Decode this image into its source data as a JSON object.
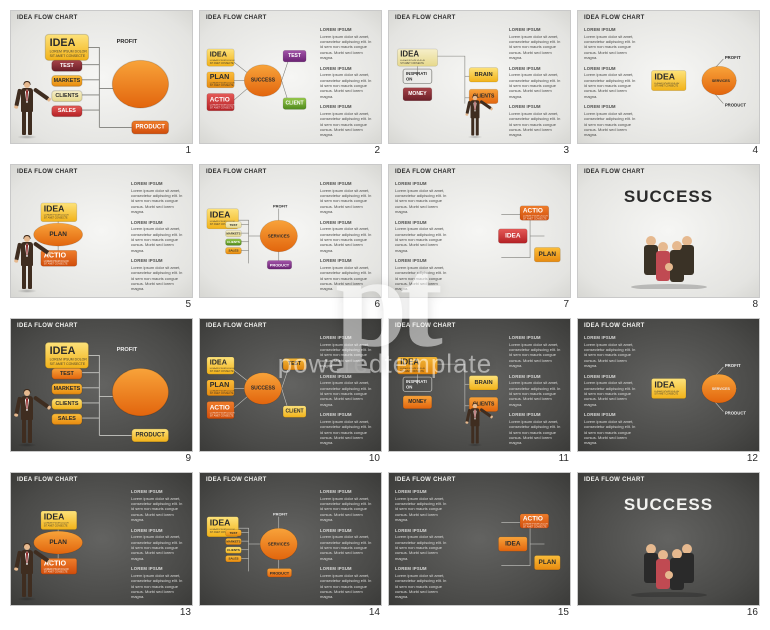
{
  "watermark": {
    "logo": "pt",
    "text": "poweredtemplate"
  },
  "slide_title": "IDEA FLOW CHART",
  "lorem_label": "LOREM IPSUM",
  "lorem_body": "Lorem ipsum dolor sit amet, consectetur adipiscing elit. In id sem non mauris congue cursus. Morbi sed lorem magna.",
  "colors": {
    "line_light": "#7d7d78",
    "line_dark": "#c8c8c4",
    "yellow_a": "#fde27a",
    "yellow_b": "#f2b219",
    "amber_a": "#fbbd3a",
    "amber_b": "#e78a0f",
    "orange_a": "#f8a33a",
    "orange_b": "#e2650d",
    "dorange_a": "#ef7e2c",
    "dorange_b": "#d14c0a",
    "red_a": "#e55a57",
    "red_b": "#b42024",
    "maroon_a": "#a64248",
    "maroon_b": "#6c1f28",
    "purple_a": "#a254a8",
    "purple_b": "#6b2274",
    "green_a": "#97c94c",
    "green_b": "#4f8a1d",
    "cream_a": "#f6efca",
    "cream_b": "#e7d98c",
    "node_txt_dark": "#2b2b2b",
    "node_txt_light": "#ffffff",
    "sub_txt": "#5a4a0c"
  },
  "slides": [
    {
      "id": 1,
      "theme": "light",
      "text_side": "none",
      "layout": "A",
      "has_man": "left",
      "nodes": {
        "idea": "IDEA",
        "profit": "PROFIT",
        "test": "TEST",
        "markets": "MARKETS",
        "clients": "CLIENTS",
        "sales": "SALES",
        "ellipse": "",
        "product": "PRODUCT"
      }
    },
    {
      "id": 2,
      "theme": "light",
      "text_side": "right",
      "layout": "B",
      "nodes": {
        "idea": "IDEA",
        "test": "TEST",
        "plan": "PLAN",
        "success": "SUCCESS",
        "actio": "ACTIO",
        "client": "CLIENT"
      }
    },
    {
      "id": 3,
      "theme": "light",
      "text_side": "right",
      "layout": "C",
      "has_man": "mid",
      "nodes": {
        "idea": "IDEA",
        "inspiration": "INSPIRATI\nON",
        "money": "MONEY",
        "brain": "BRAIN",
        "clients": "CLIENTS"
      }
    },
    {
      "id": 4,
      "theme": "light",
      "text_side": "left",
      "layout": "D",
      "nodes": {
        "profit": "PROFIT",
        "idea": "IDEA",
        "services": "SERVICES",
        "product": "PRODUCT"
      }
    },
    {
      "id": 5,
      "theme": "light",
      "text_side": "right",
      "layout": "E",
      "has_man": "left",
      "nodes": {
        "idea": "IDEA",
        "plan": "PLAN",
        "actio": "ACTIO"
      }
    },
    {
      "id": 6,
      "theme": "light",
      "text_side": "right",
      "layout": "F",
      "nodes": {
        "idea": "IDEA",
        "profit": "PROFIT",
        "test": "TEST",
        "markets": "MARKETS",
        "clients": "CLIENTS",
        "sales": "SALES",
        "services": "SERVICES",
        "product": "PRODUCT"
      }
    },
    {
      "id": 7,
      "theme": "light",
      "text_side": "left",
      "layout": "G",
      "nodes": {
        "actio": "ACTIO",
        "idea": "IDEA",
        "plan": "PLAN"
      }
    },
    {
      "id": 8,
      "theme": "light",
      "text_side": "none",
      "layout": "H",
      "nodes": {
        "success": "SUCCESS"
      }
    },
    {
      "id": 9,
      "theme": "dark",
      "text_side": "none",
      "layout": "A",
      "has_man": "left",
      "nodes": {
        "idea": "IDEA",
        "profit": "PROFIT",
        "test": "TEST",
        "markets": "MARKETS",
        "clients": "CLIENTS",
        "sales": "SALES",
        "ellipse": "",
        "product": "PRODUCT"
      }
    },
    {
      "id": 10,
      "theme": "dark",
      "text_side": "right",
      "layout": "B",
      "nodes": {
        "idea": "IDEA",
        "test": "TEST",
        "plan": "PLAN",
        "success": "SUCCESS",
        "actio": "ACTIO",
        "client": "CLIENT"
      }
    },
    {
      "id": 11,
      "theme": "dark",
      "text_side": "right",
      "layout": "C",
      "has_man": "mid",
      "nodes": {
        "idea": "IDEA",
        "inspiration": "INSPIRATI\nON",
        "money": "MONEY",
        "brain": "BRAIN",
        "clients": "CLIENTS"
      }
    },
    {
      "id": 12,
      "theme": "dark",
      "text_side": "left",
      "layout": "D",
      "nodes": {
        "profit": "PROFIT",
        "idea": "IDEA",
        "services": "SERVICES",
        "product": "PRODUCT"
      }
    },
    {
      "id": 13,
      "theme": "dark",
      "text_side": "right",
      "layout": "E",
      "has_man": "left",
      "nodes": {
        "idea": "IDEA",
        "plan": "PLAN",
        "actio": "ACTIO"
      }
    },
    {
      "id": 14,
      "theme": "dark",
      "text_side": "right",
      "layout": "F",
      "nodes": {
        "idea": "IDEA",
        "profit": "PROFIT",
        "test": "TEST",
        "markets": "MARKETS",
        "clients": "CLIENTS",
        "sales": "SALES",
        "services": "SERVICES",
        "product": "PRODUCT"
      }
    },
    {
      "id": 15,
      "theme": "dark",
      "text_side": "left",
      "layout": "G",
      "nodes": {
        "actio": "ACTIO",
        "idea": "IDEA",
        "plan": "PLAN"
      }
    },
    {
      "id": 16,
      "theme": "dark",
      "text_side": "none",
      "layout": "H",
      "nodes": {
        "success": "SUCCESS"
      }
    }
  ],
  "variant_colors": {
    "light": {
      "A": {
        "idea": "yellow",
        "profit": "yellow",
        "test": "maroon",
        "markets": "amber",
        "clients": "cream",
        "sales": "red",
        "ellipse": "orange",
        "product": "dorange"
      },
      "B": {
        "idea": "yellow",
        "test": "purple",
        "plan": "amber",
        "success": "orange",
        "actio": "red",
        "client": "green"
      },
      "C": {
        "idea": "cream",
        "inspiration": "amber",
        "money": "maroon",
        "brain": "yellow",
        "clients": "orange"
      },
      "D": {
        "profit": "cream",
        "idea": "yellow",
        "services": "amber",
        "product": "orange",
        "ellipse": "orange"
      },
      "E": {
        "idea": "yellow",
        "plan": "orange",
        "actio": "dorange"
      },
      "F": {
        "idea": "yellow",
        "profit": "cream",
        "test": "cream",
        "markets": "cream",
        "clients": "green",
        "sales": "amber",
        "services": "orange",
        "product": "purple",
        "ellipse": "orange"
      },
      "G": {
        "actio": "dorange",
        "idea": "red",
        "plan": "amber"
      }
    },
    "dark": {
      "A": {
        "idea": "yellow",
        "profit": "yellow",
        "test": "orange",
        "markets": "amber",
        "clients": "yellow",
        "sales": "amber",
        "ellipse": "orange",
        "product": "yellow"
      },
      "B": {
        "idea": "yellow",
        "test": "amber",
        "plan": "amber",
        "success": "orange",
        "actio": "dorange",
        "client": "yellow"
      },
      "C": {
        "idea": "amber",
        "inspiration": "yellow",
        "money": "orange",
        "brain": "yellow",
        "clients": "orange"
      },
      "D": {
        "profit": "yellow",
        "idea": "yellow",
        "services": "amber",
        "product": "orange",
        "ellipse": "orange"
      },
      "E": {
        "idea": "yellow",
        "plan": "orange",
        "actio": "dorange"
      },
      "F": {
        "idea": "yellow",
        "profit": "yellow",
        "test": "amber",
        "markets": "amber",
        "clients": "yellow",
        "sales": "amber",
        "services": "orange",
        "product": "orange",
        "ellipse": "orange"
      },
      "G": {
        "actio": "dorange",
        "idea": "orange",
        "plan": "amber"
      }
    }
  },
  "layouts_description": {
    "A": "man left; IDEA box, column of 4 small boxes (TEST/MARKETS/CLIENTS/SALES), PROFIT top-right outline, big ellipse right, PRODUCT bottom-right",
    "B": "IDEA+PLAN+ACTIO left column, SUCCESS ellipse center, TEST top-right, CLIENT bottom-right",
    "C": "IDEA large top, INSPIRATION label, MONEY box, BRAIN+CLIENTS right, small man middle",
    "D": "Right aligned: IDEA box + ellipse; PROFIT/SERVICES/PRODUCT labels connected",
    "E": "Man left, IDEA / PLAN(ellipse) / ACTIO stacked",
    "F": "Full flow: IDEA big, 4 small stack, ellipse SERVICES, PROFIT top, PRODUCT bottom",
    "G": "Three boxes center-right: ACTIO/IDEA/PLAN (spread)",
    "H": "SUCCESS title + team of people"
  }
}
